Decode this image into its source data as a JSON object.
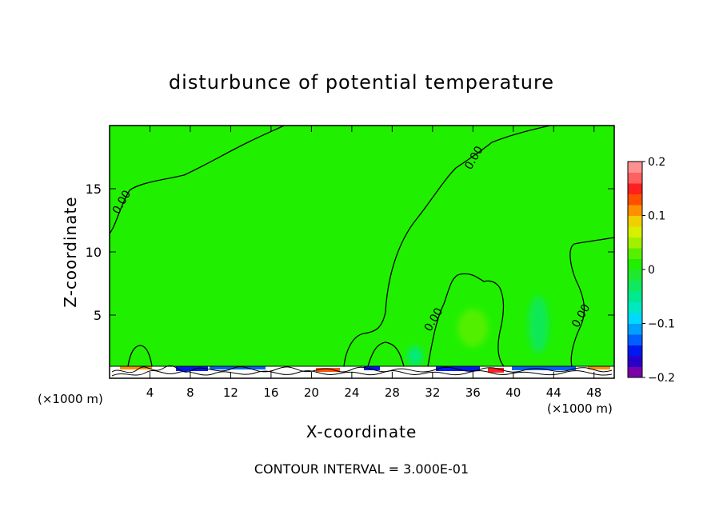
{
  "chart_data": {
    "type": "heatmap",
    "title": "disturbunce of potential temperature",
    "xlabel": "X-coordinate",
    "ylabel": "Z-coordinate",
    "x_unit_left": "(×1000 m)",
    "x_unit_right": "(×1000 m)",
    "xlim": [
      0,
      50
    ],
    "ylim": [
      0,
      20
    ],
    "x_ticks": [
      4,
      8,
      12,
      16,
      20,
      24,
      28,
      32,
      36,
      40,
      44,
      48
    ],
    "x_tick_labels": [
      "4",
      "8",
      "12",
      "16",
      "20",
      "24",
      "28",
      "32",
      "36",
      "40",
      "44",
      "48"
    ],
    "y_ticks": [
      5,
      10,
      15
    ],
    "y_tick_labels": [
      "5",
      "10",
      "15"
    ],
    "contour_interval_text": "CONTOUR INTERVAL = 3.000E-01",
    "contour_labels": [
      {
        "text": "0.00",
        "x": 1.5,
        "y": 13.8
      },
      {
        "text": "0.00",
        "x": 36.4,
        "y": 17.3
      },
      {
        "text": "0.00",
        "x": 32.4,
        "y": 4.5
      },
      {
        "text": "0.00",
        "x": 47.0,
        "y": 4.8
      }
    ],
    "field_value_dominant": 0,
    "regions": [
      {
        "desc": "weak positive",
        "value": 0.03,
        "x": [
          34.5,
          37.5
        ],
        "y": [
          2.5,
          5.5
        ]
      },
      {
        "desc": "weak negative",
        "value": -0.03,
        "x": [
          41.5,
          43.5
        ],
        "y": [
          2.0,
          6.5
        ]
      },
      {
        "desc": "weak negative",
        "value": -0.04,
        "x": [
          29.5,
          31.0
        ],
        "y": [
          1.0,
          2.5
        ]
      }
    ],
    "colorbar": {
      "min": -0.2,
      "max": 0.2,
      "tick_labels": [
        "0.2",
        "0.1",
        "0",
        "−0.1",
        "−0.2"
      ],
      "tick_values": [
        0.2,
        0.1,
        0,
        -0.1,
        -0.2
      ],
      "colors": [
        "#7a00a8",
        "#2a00c8",
        "#0018f0",
        "#0060ff",
        "#00a0ff",
        "#00d8ff",
        "#00e8c0",
        "#00e890",
        "#10e860",
        "#1ee830",
        "#20f000",
        "#58f000",
        "#a0f000",
        "#d8f000",
        "#f0d000",
        "#ff9000",
        "#ff5000",
        "#ff2020",
        "#ff6060",
        "#ff9090"
      ]
    },
    "grid": false,
    "legend": "colorbar-right"
  }
}
